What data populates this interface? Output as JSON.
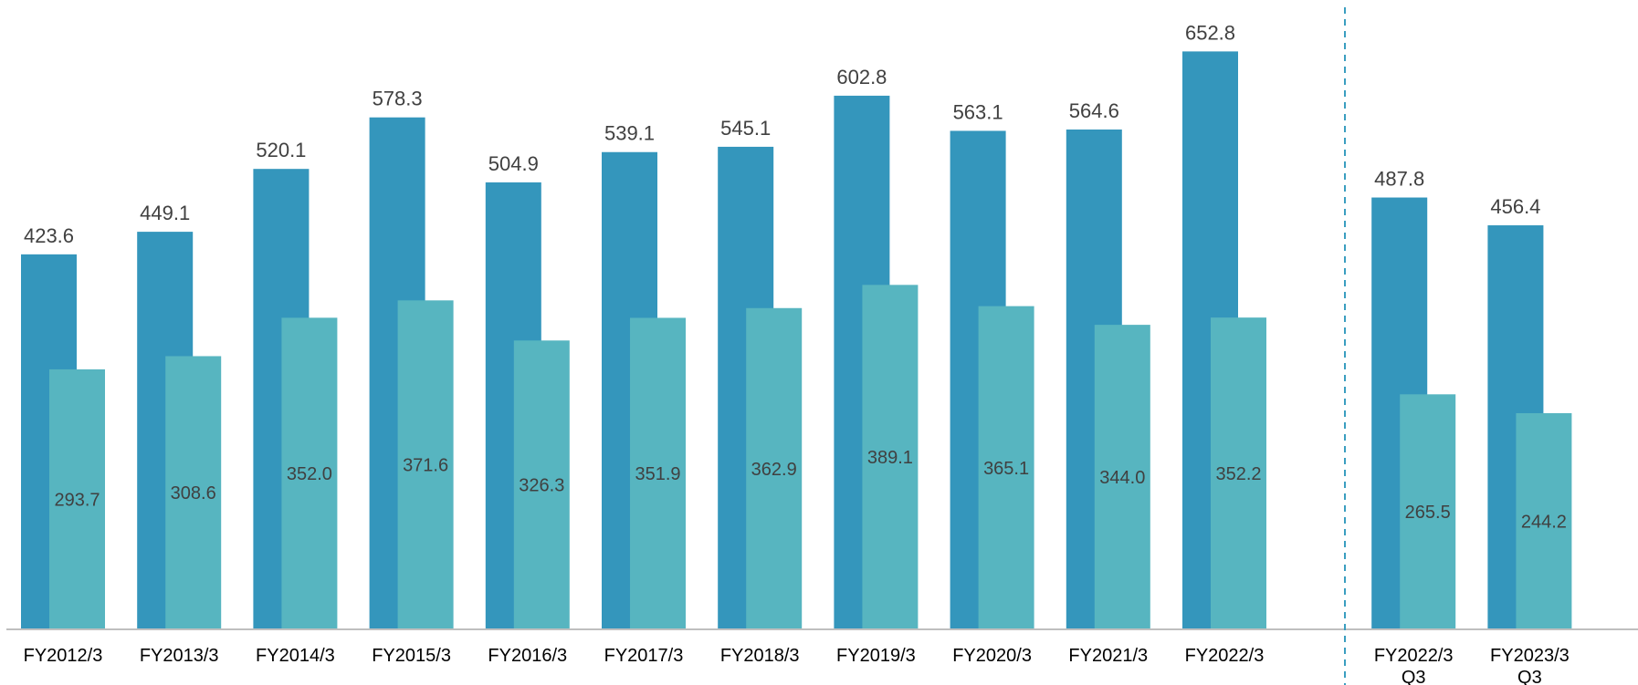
{
  "chart_data": {
    "type": "bar",
    "title": "",
    "xlabel": "",
    "ylabel": "",
    "ylim": [
      0,
      700
    ],
    "grid": false,
    "legend": "none",
    "categories": [
      [
        "FY2012/3"
      ],
      [
        "FY2013/3"
      ],
      [
        "FY2014/3"
      ],
      [
        "FY2015/3"
      ],
      [
        "FY2016/3"
      ],
      [
        "FY2017/3"
      ],
      [
        "FY2018/3"
      ],
      [
        "FY2019/3"
      ],
      [
        "FY2020/3"
      ],
      [
        "FY2021/3"
      ],
      [
        "FY2022/3"
      ],
      [
        "FY2022/3",
        "Q3"
      ],
      [
        "FY2023/3",
        "Q3"
      ]
    ],
    "groups": [
      {
        "categories_index": [
          0,
          1,
          2,
          3,
          4,
          5,
          6,
          7,
          8,
          9,
          10
        ]
      },
      {
        "categories_index": [
          11,
          12
        ]
      }
    ],
    "series": [
      {
        "values": [
          423.6,
          449.1,
          520.1,
          578.3,
          504.9,
          539.1,
          545.1,
          602.8,
          563.1,
          564.6,
          652.8,
          487.8,
          456.4
        ],
        "labels": [
          "423.6",
          "449.1",
          "520.1",
          "578.3",
          "504.9",
          "539.1",
          "545.1",
          "602.8",
          "563.1",
          "564.6",
          "652.8",
          "487.8",
          "456.4"
        ]
      },
      {
        "values": [
          293.7,
          308.6,
          352.0,
          371.6,
          326.3,
          351.9,
          362.9,
          389.1,
          365.1,
          344.0,
          352.2,
          265.5,
          244.2
        ],
        "labels": [
          "293.7",
          "308.6",
          "352.0",
          "371.6",
          "326.3",
          "351.9",
          "362.9",
          "389.1",
          "365.1",
          "344.0",
          "352.2",
          "265.5",
          "244.2"
        ]
      }
    ],
    "colors": {
      "series_1": "#3496bc",
      "series_2": "#57b5c0",
      "axis": "#bfbfbf",
      "separator": "#3a9ec0",
      "value_text": "#404040",
      "category_text": "#000000"
    }
  }
}
